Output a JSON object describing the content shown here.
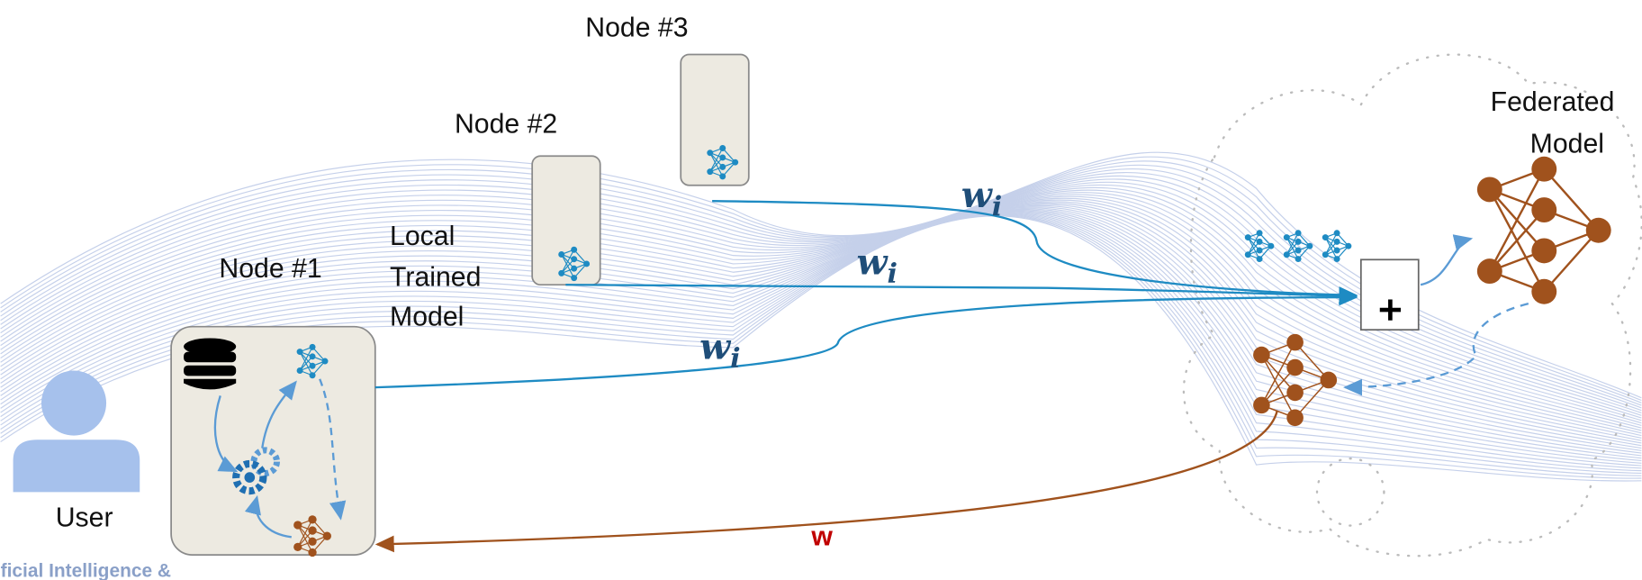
{
  "nodes": [
    {
      "label": "Node #1"
    },
    {
      "label": "Node #2"
    },
    {
      "label": "Node #3"
    }
  ],
  "local_model_label": [
    "Local",
    "Trained",
    "Model"
  ],
  "user_label": "User",
  "federated_model_label": [
    "Federated",
    "Model"
  ],
  "weights": [
    {
      "symbol": "w",
      "subscript": "i"
    },
    {
      "symbol": "w",
      "subscript": "i"
    },
    {
      "symbol": "w",
      "subscript": "i"
    }
  ],
  "global_weight": "w",
  "footer": "ficial Intelligence &"
}
